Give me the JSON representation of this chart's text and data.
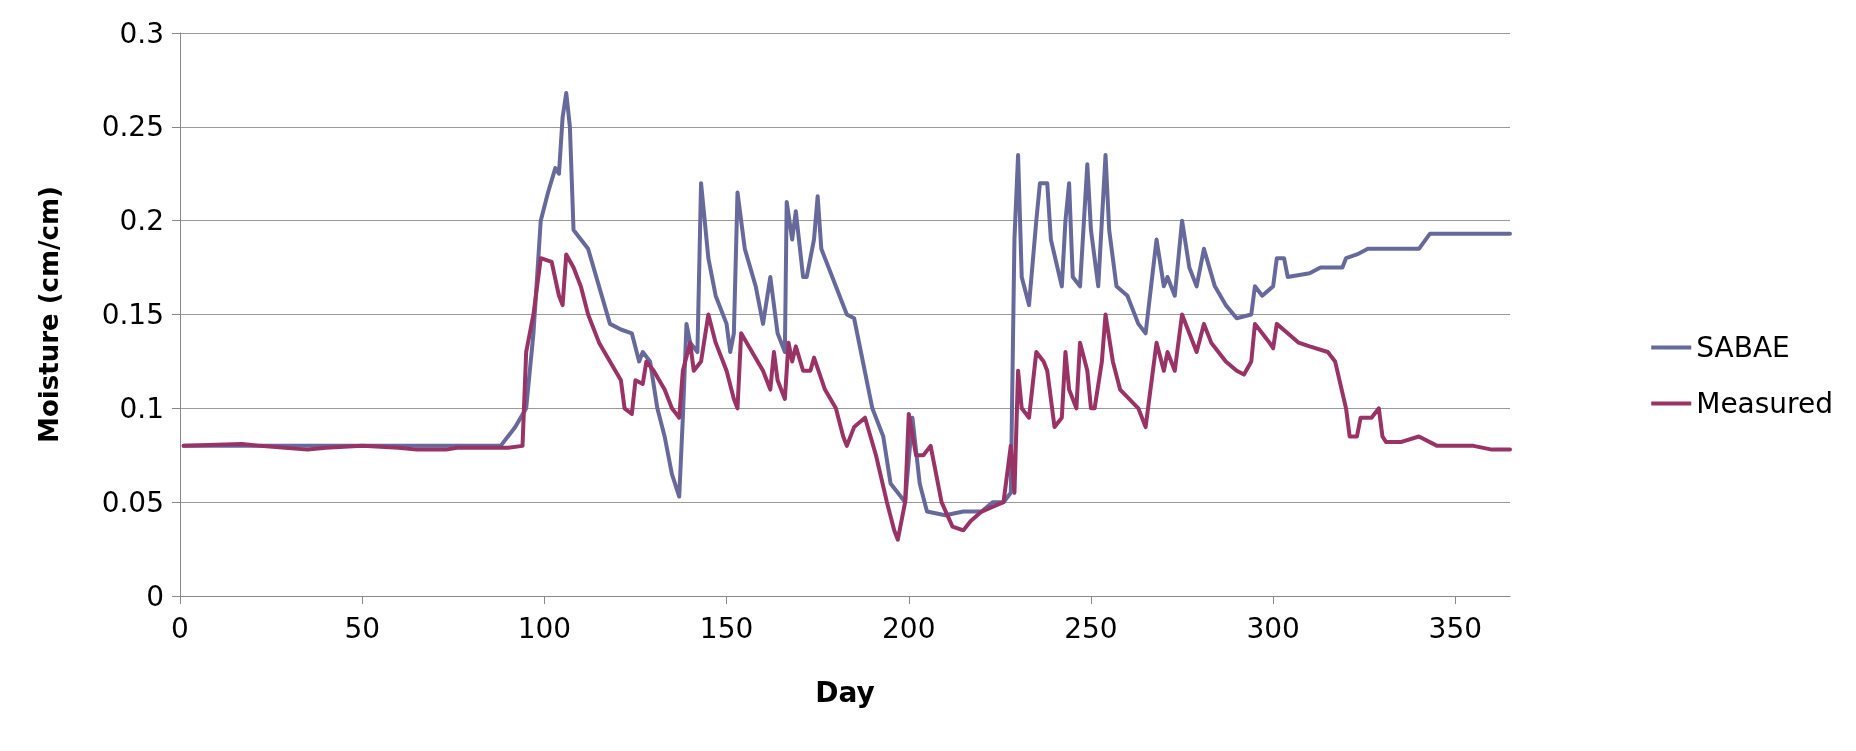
{
  "chart_data": {
    "type": "line",
    "xlabel": "Day",
    "ylabel": "Moisture (cm/cm)",
    "xlim": [
      0,
      365
    ],
    "xticks": [
      0,
      50,
      100,
      150,
      200,
      250,
      300,
      350
    ],
    "ylim": [
      0,
      0.3
    ],
    "yticks": [
      0,
      0.05,
      0.1,
      0.15,
      0.2,
      0.25,
      0.3
    ],
    "grid": "y",
    "legend": "right",
    "marker": "none",
    "line_style": "solid",
    "series": [
      {
        "name": "SABAE",
        "color": "#66699a",
        "x": [
          1,
          88,
          92,
          95,
          97,
          99,
          101,
          103,
          104,
          105,
          106,
          107,
          108,
          112,
          115,
          118,
          121,
          124,
          126,
          127,
          129,
          131,
          133,
          135,
          137,
          138,
          139,
          140,
          142,
          143,
          145,
          147,
          150,
          151,
          152,
          153,
          155,
          158,
          160,
          162,
          164,
          166,
          166.5,
          168,
          169,
          171,
          172,
          174,
          175,
          176,
          178,
          181,
          183,
          185,
          190,
          193,
          195,
          197,
          199,
          201,
          203,
          205,
          210,
          215,
          220,
          223,
          226,
          228,
          229,
          230,
          231,
          233,
          235,
          236,
          238,
          239,
          242,
          243,
          244,
          245,
          247,
          249,
          250,
          252,
          253,
          254,
          255,
          257,
          260,
          263,
          265,
          268,
          270,
          271,
          273,
          275,
          277,
          279,
          281,
          284,
          287,
          290,
          294,
          295,
          297,
          300,
          301,
          303,
          304,
          310,
          313,
          319,
          320,
          323,
          326,
          340,
          343,
          365
        ],
        "values": [
          0.08,
          0.08,
          0.09,
          0.1,
          0.14,
          0.2,
          0.215,
          0.228,
          0.225,
          0.255,
          0.268,
          0.25,
          0.195,
          0.185,
          0.165,
          0.145,
          0.142,
          0.14,
          0.125,
          0.13,
          0.125,
          0.1,
          0.085,
          0.065,
          0.053,
          0.095,
          0.145,
          0.135,
          0.13,
          0.22,
          0.18,
          0.16,
          0.145,
          0.13,
          0.14,
          0.215,
          0.185,
          0.165,
          0.145,
          0.17,
          0.14,
          0.13,
          0.21,
          0.19,
          0.205,
          0.17,
          0.17,
          0.19,
          0.213,
          0.185,
          0.175,
          0.16,
          0.15,
          0.148,
          0.1,
          0.085,
          0.06,
          0.055,
          0.05,
          0.095,
          0.06,
          0.045,
          0.043,
          0.045,
          0.045,
          0.05,
          0.05,
          0.055,
          0.19,
          0.235,
          0.17,
          0.155,
          0.2,
          0.22,
          0.22,
          0.19,
          0.165,
          0.2,
          0.22,
          0.17,
          0.165,
          0.23,
          0.195,
          0.165,
          0.2,
          0.235,
          0.195,
          0.165,
          0.16,
          0.145,
          0.14,
          0.19,
          0.165,
          0.17,
          0.16,
          0.2,
          0.175,
          0.165,
          0.185,
          0.165,
          0.155,
          0.148,
          0.15,
          0.165,
          0.16,
          0.165,
          0.18,
          0.18,
          0.17,
          0.172,
          0.175,
          0.175,
          0.18,
          0.182,
          0.185,
          0.185,
          0.193,
          0.193
        ]
      },
      {
        "name": "Measured",
        "color": "#993366",
        "x": [
          1,
          17,
          22,
          35,
          40,
          50,
          60,
          65,
          73,
          76,
          90,
          94,
          95,
          97,
          99,
          102,
          104,
          105,
          106,
          108,
          110,
          112,
          115,
          118,
          121,
          122,
          124,
          125,
          127,
          128,
          130,
          133,
          135,
          137,
          138,
          140,
          141,
          143,
          145,
          147,
          150,
          152,
          153,
          154,
          157,
          160,
          162,
          163,
          164,
          166,
          167,
          168,
          169,
          171,
          173,
          174,
          177,
          180,
          182,
          183,
          185,
          188,
          191,
          194,
          196,
          197,
          199,
          200,
          202,
          204,
          206,
          208,
          209,
          212,
          215,
          217,
          220,
          226,
          228,
          229,
          230,
          231,
          233,
          235,
          237,
          238,
          240,
          242,
          243,
          244,
          246,
          247,
          249,
          250,
          251,
          253,
          254,
          256,
          258,
          263,
          265,
          268,
          270,
          271,
          273,
          275,
          277,
          279,
          281,
          283,
          287,
          290,
          292,
          294,
          295,
          297,
          299,
          300,
          301,
          304,
          307,
          310,
          315,
          317,
          320,
          321,
          323,
          324,
          326,
          327,
          329,
          330,
          331,
          335,
          340,
          345,
          350,
          355,
          360,
          365
        ],
        "values": [
          0.08,
          0.081,
          0.08,
          0.078,
          0.079,
          0.08,
          0.079,
          0.078,
          0.078,
          0.079,
          0.079,
          0.08,
          0.13,
          0.15,
          0.18,
          0.178,
          0.16,
          0.155,
          0.182,
          0.175,
          0.165,
          0.15,
          0.135,
          0.125,
          0.115,
          0.1,
          0.097,
          0.115,
          0.113,
          0.125,
          0.12,
          0.11,
          0.1,
          0.095,
          0.12,
          0.135,
          0.12,
          0.125,
          0.15,
          0.135,
          0.12,
          0.105,
          0.1,
          0.14,
          0.13,
          0.12,
          0.11,
          0.13,
          0.115,
          0.105,
          0.135,
          0.125,
          0.133,
          0.12,
          0.12,
          0.127,
          0.11,
          0.1,
          0.085,
          0.08,
          0.09,
          0.095,
          0.075,
          0.05,
          0.035,
          0.03,
          0.05,
          0.097,
          0.075,
          0.075,
          0.08,
          0.06,
          0.05,
          0.037,
          0.035,
          0.04,
          0.045,
          0.05,
          0.08,
          0.055,
          0.12,
          0.1,
          0.095,
          0.13,
          0.125,
          0.12,
          0.09,
          0.095,
          0.13,
          0.11,
          0.1,
          0.135,
          0.12,
          0.1,
          0.1,
          0.125,
          0.15,
          0.125,
          0.11,
          0.1,
          0.09,
          0.135,
          0.12,
          0.13,
          0.12,
          0.15,
          0.14,
          0.13,
          0.145,
          0.135,
          0.125,
          0.12,
          0.118,
          0.125,
          0.145,
          0.14,
          0.135,
          0.132,
          0.145,
          0.14,
          0.135,
          0.133,
          0.13,
          0.125,
          0.1,
          0.085,
          0.085,
          0.095,
          0.095,
          0.095,
          0.1,
          0.085,
          0.082,
          0.082,
          0.085,
          0.08,
          0.08,
          0.08,
          0.078,
          0.078
        ]
      }
    ]
  }
}
